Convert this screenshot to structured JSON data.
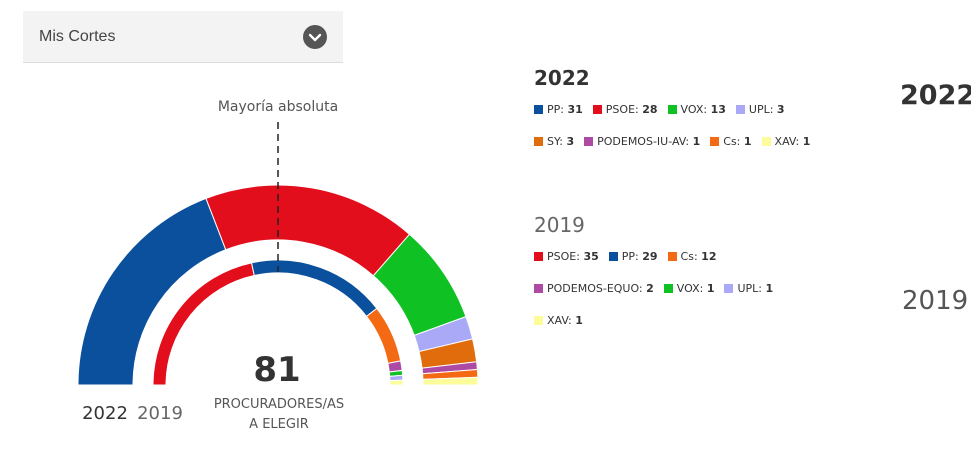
{
  "selector": {
    "label": "Mis Cortes"
  },
  "chart_data": {
    "type": "parliament-semicircle",
    "total_seats": 81,
    "total_caption_line1": "PROCURADORES/AS",
    "total_caption_line2": "A ELEGIR",
    "majority_label": "Mayoría absoluta",
    "outer_ring_label": "2022",
    "inner_ring_label": "2019",
    "series": [
      {
        "name": "2022",
        "parties": [
          {
            "party": "PP",
            "seats": 31,
            "color": "#0b509c"
          },
          {
            "party": "PSOE",
            "seats": 28,
            "color": "#e30e1c"
          },
          {
            "party": "VOX",
            "seats": 13,
            "color": "#10c123"
          },
          {
            "party": "UPL",
            "seats": 3,
            "color": "#a9a9f7"
          },
          {
            "party": "SY",
            "seats": 3,
            "color": "#e06c0b"
          },
          {
            "party": "PODEMOS-IU-AV",
            "seats": 1,
            "color": "#ad4aa3"
          },
          {
            "party": "Cs",
            "seats": 1,
            "color": "#f46a14"
          },
          {
            "party": "XAV",
            "seats": 1,
            "color": "#fcfc9a"
          }
        ]
      },
      {
        "name": "2019",
        "parties": [
          {
            "party": "PSOE",
            "seats": 35,
            "color": "#e30e1c"
          },
          {
            "party": "PP",
            "seats": 29,
            "color": "#0b509c"
          },
          {
            "party": "Cs",
            "seats": 12,
            "color": "#f46a14"
          },
          {
            "party": "PODEMOS-EQUO",
            "seats": 2,
            "color": "#ad4aa3"
          },
          {
            "party": "VOX",
            "seats": 1,
            "color": "#10c123"
          },
          {
            "party": "UPL",
            "seats": 1,
            "color": "#a9a9f7"
          },
          {
            "party": "XAV",
            "seats": 1,
            "color": "#fcfc9a"
          }
        ]
      }
    ]
  },
  "side_labels": {
    "top": "2022",
    "bottom": "2019"
  }
}
